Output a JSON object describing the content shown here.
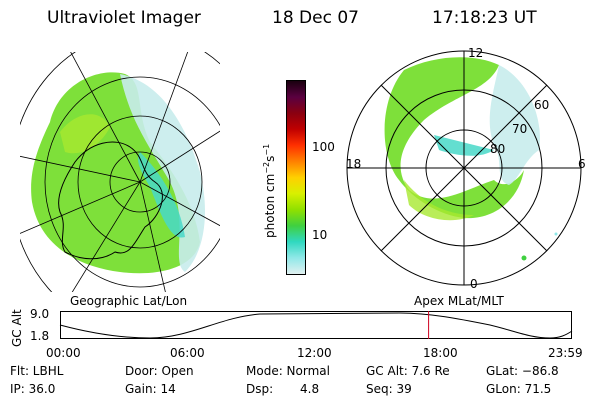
{
  "header": {
    "instrument": "Ultraviolet Imager",
    "date": "18 Dec 07",
    "time": "17:18:23 UT"
  },
  "colorbar": {
    "unit_label": "photon cm",
    "unit_exp1": "−2",
    "unit_mid": "s",
    "unit_exp2": "−1",
    "ticks": [
      "100",
      "10"
    ],
    "colors": [
      "#1a0010",
      "#5a0040",
      "#8a0010",
      "#c00000",
      "#ff3000",
      "#ff8000",
      "#ffd000",
      "#d8f000",
      "#90e000",
      "#40d040",
      "#30d8c0",
      "#90e8e8",
      "#e0f0f0"
    ]
  },
  "geo_panel": {
    "label": "Geographic Lat/Lon"
  },
  "polar_panel": {
    "label": "Apex  MLat/MLT",
    "mlt_labels": {
      "top": "12",
      "left": "18",
      "right": "6",
      "bottom": "0"
    },
    "lat_labels": [
      "60",
      "70",
      "80"
    ]
  },
  "altitude_plot": {
    "ylabel": "GC Alt",
    "ymax": "9.0",
    "ymin": "1.8",
    "xticks": [
      "00:00",
      "06:00",
      "12:00",
      "18:00",
      "23:59"
    ],
    "current_time_fraction": 0.72,
    "marker_color": "#d00020"
  },
  "status": {
    "row1": {
      "flt": "Flt: LBHL",
      "door": "Door: Open",
      "mode": "Mode: Normal",
      "gcalt": "GC Alt: 7.6 Re",
      "glat": "GLat: −86.8"
    },
    "row2": {
      "ip": "IP: 36.0",
      "gain": "Gain: 14",
      "dsp_label": "Dsp:",
      "dsp_value": "4.8",
      "seq": "Seq: 39",
      "glon": "GLon: 71.5"
    }
  }
}
